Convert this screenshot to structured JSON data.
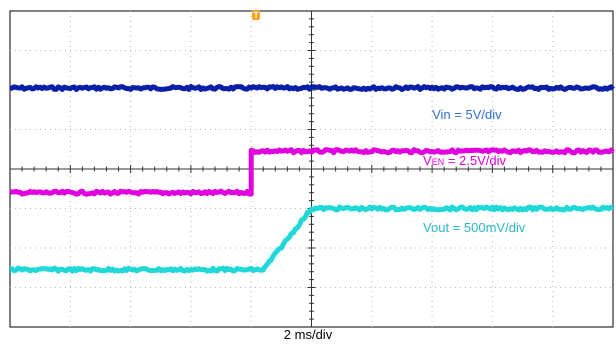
{
  "chart_data": {
    "type": "line",
    "title": "",
    "xlabel": "2 ms/div",
    "ylabel": "",
    "grid": true,
    "x_divisions": 10,
    "y_divisions": 8,
    "x_unit": "div",
    "x_range": [
      0,
      10
    ],
    "y_range": [
      -4,
      4
    ],
    "trigger_marker": "T",
    "trigger_color": "#f5a623",
    "series": [
      {
        "name": "Vin",
        "label": "Vin = 5V/div",
        "label_parts": {
          "main": "Vin = 5V/div",
          "sub": ""
        },
        "color": "#0a1fa8",
        "label_color": "#2e6fcf",
        "x": [
          0,
          10
        ],
        "y": [
          2.05,
          2.05
        ]
      },
      {
        "name": "VEN",
        "label": "VEN = 2.5V/div",
        "label_parts": {
          "main": "V",
          "sub": "EN",
          "rest": " = 2.5V/div"
        },
        "color": "#e000e0",
        "label_color": "#e000e0",
        "x": [
          0,
          4.0,
          4.0,
          10
        ],
        "y": [
          -0.6,
          -0.6,
          0.45,
          0.45
        ]
      },
      {
        "name": "Vout",
        "label": "Vout = 500mV/div",
        "label_parts": {
          "main": "Vout = 500mV/div",
          "sub": ""
        },
        "color": "#20d8d8",
        "label_color": "#2ab7c8",
        "x": [
          0,
          4.2,
          5.0,
          10
        ],
        "y": [
          -2.55,
          -2.55,
          -1.0,
          -1.0
        ]
      }
    ]
  }
}
